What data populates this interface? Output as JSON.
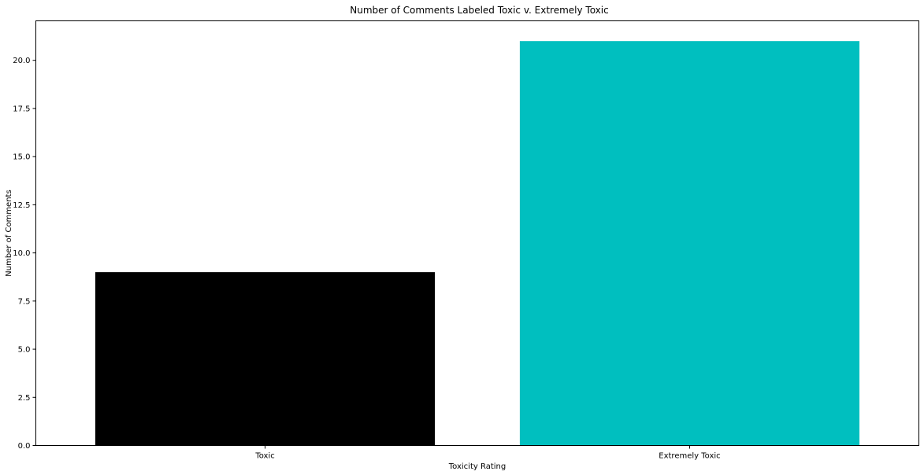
{
  "chart_data": {
    "type": "bar",
    "title": "Number of Comments Labeled Toxic v. Extremely Toxic",
    "xlabel": "Toxicity Rating",
    "ylabel": "Number of Comments",
    "categories": [
      "Toxic",
      "Extremely Toxic"
    ],
    "values": [
      9,
      21
    ],
    "colors": [
      "#000000",
      "#00bfbf"
    ],
    "ylim": [
      0,
      22.05
    ],
    "yticks": [
      0,
      2.5,
      5,
      7.5,
      10,
      12.5,
      15,
      17.5,
      20
    ],
    "ytick_labels": [
      "0.0",
      "2.5",
      "5.0",
      "7.5",
      "10.0",
      "12.5",
      "15.0",
      "17.5",
      "20.0"
    ],
    "grid": false,
    "legend": "none"
  }
}
